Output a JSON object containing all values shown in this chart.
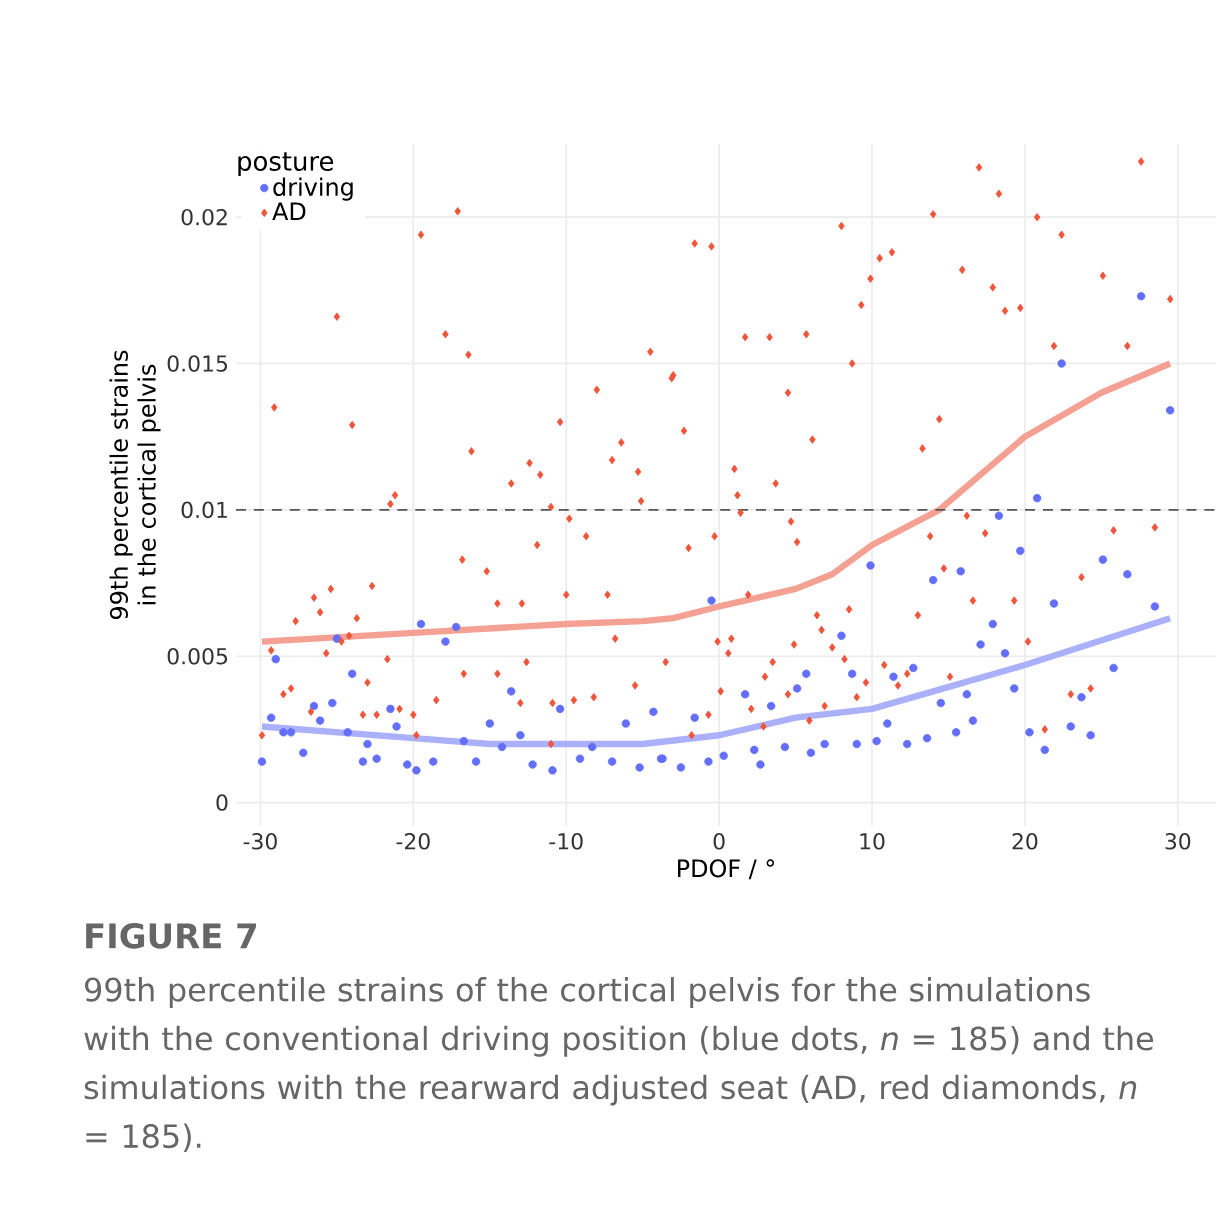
{
  "chart_data": {
    "type": "scatter",
    "xlabel": "PDOF / °",
    "ylabel": "99th percentile strains in the cortical pelvis",
    "legend_title": "posture",
    "legend": "top left",
    "grid": true,
    "xlim": [
      -31.6,
      32.5
    ],
    "ylim": [
      -0.0008,
      0.0225
    ],
    "xticks": [
      -30,
      -20,
      -10,
      0,
      10,
      20,
      30
    ],
    "yticks": [
      0,
      0.005,
      0.01,
      0.015,
      0.02
    ],
    "ref_lines": [
      {
        "axis": "y",
        "value": 0.01,
        "color": "#555555",
        "line_style": "dashed"
      }
    ],
    "annotations": [
      "FIGURE 7",
      "99th percentile strains of the cortical pelvis for the simulations with the conventional driving position (blue dots, *n* = 185) and the simulations with the rearward adjusted seat (AD, red diamonds, *n* = 185)."
    ],
    "series": [
      {
        "name": "driving",
        "color": "#636efa",
        "marker": "circle",
        "x": [
          -29.9,
          -29.3,
          -29,
          -28.5,
          -28,
          -27.2,
          -26.5,
          -26.1,
          -25.3,
          -25,
          -24.3,
          -24,
          -23.3,
          -23,
          -22.4,
          -21.5,
          -21.1,
          -20.4,
          -19.8,
          -19.5,
          -18.7,
          -17.9,
          -17.2,
          -16.7,
          -15.9,
          -15,
          -14.2,
          -13.6,
          -13,
          -12.2,
          -10.9,
          -10.4,
          -9.1,
          -8.3,
          -7,
          -6.1,
          -5.2,
          -4.3,
          -3.7,
          -3.8,
          -2.5,
          -1.6,
          -0.7,
          -0.5,
          0.3,
          1.7,
          2.3,
          2.7,
          3.4,
          4.3,
          5.1,
          5.7,
          6,
          6.9,
          8,
          8.7,
          9,
          9.9,
          10.3,
          11,
          11.4,
          12.3,
          12.7,
          13.6,
          14,
          14.5,
          15.5,
          15.8,
          16.2,
          16.6,
          17.1,
          17.9,
          18.3,
          18.7,
          19.3,
          19.7,
          20.3,
          20.8,
          21.3,
          21.9,
          22.4,
          23,
          23.7,
          24.3,
          25.1,
          25.8,
          26.7,
          27.6,
          28.5,
          29.5
        ],
        "values": [
          0.0014,
          0.0029,
          0.0049,
          0.0024,
          0.0024,
          0.0017,
          0.0033,
          0.0028,
          0.0034,
          0.0056,
          0.0024,
          0.0044,
          0.0014,
          0.002,
          0.0015,
          0.0032,
          0.0026,
          0.0013,
          0.0011,
          0.0061,
          0.0014,
          0.0055,
          0.006,
          0.0021,
          0.0014,
          0.0027,
          0.0019,
          0.0038,
          0.0023,
          0.0013,
          0.0011,
          0.0032,
          0.0015,
          0.0019,
          0.0014,
          0.0027,
          0.0012,
          0.0031,
          0.0015,
          0.0015,
          0.0012,
          0.0029,
          0.0014,
          0.0069,
          0.0016,
          0.0037,
          0.0018,
          0.0013,
          0.0033,
          0.0019,
          0.0039,
          0.0044,
          0.0017,
          0.002,
          0.0057,
          0.0044,
          0.002,
          0.0081,
          0.0021,
          0.0027,
          0.0043,
          0.002,
          0.0046,
          0.0022,
          0.0076,
          0.0034,
          0.0024,
          0.0079,
          0.0037,
          0.0028,
          0.0054,
          0.0061,
          0.0098,
          0.0051,
          0.0039,
          0.0086,
          0.0024,
          0.0104,
          0.0018,
          0.0068,
          0.015,
          0.0026,
          0.0036,
          0.0023,
          0.0083,
          0.0046,
          0.0078,
          0.0173,
          0.0067,
          0.0134
        ]
      },
      {
        "name": "AD",
        "color": "#ef553b",
        "marker": "diamond",
        "x": [
          -29.1,
          -29.3,
          -29.9,
          -28.5,
          -28,
          -27.7,
          -26.5,
          -26.1,
          -25.4,
          -25,
          -25.7,
          -24.7,
          -24.2,
          -24,
          -23.7,
          -22.7,
          -23.3,
          -23,
          -21.7,
          -21.5,
          -21.2,
          -22.4,
          -20.9,
          -20,
          -19.8,
          -19.5,
          -17.9,
          -17.1,
          -16.4,
          -16.2,
          -16.8,
          -16.7,
          -15.2,
          -14.5,
          -13.6,
          -12.9,
          -12.4,
          -11.7,
          -11.9,
          -12.6,
          -11,
          -10.4,
          -9.8,
          -10,
          -8.7,
          -8,
          -7,
          -6.4,
          -7.3,
          -6.8,
          -5.3,
          -5.1,
          -4.5,
          -3,
          -10.9,
          -18.5,
          -14.5,
          -13,
          -11,
          -9.5,
          -8.2,
          -5.5,
          -3.5,
          -26.7,
          -3.1,
          -2.3,
          -2,
          -1.6,
          -0.5,
          -0.3,
          -0.1,
          0.6,
          0.8,
          1,
          1.2,
          1.4,
          1.7,
          1.9,
          3.3,
          3.7,
          3.5,
          4.5,
          4.7,
          5.1,
          4.9,
          5.7,
          6.1,
          6.4,
          6.7,
          7.4,
          8,
          8.5,
          8.7,
          9.3,
          9.9,
          10.5,
          11.3,
          13.3,
          14,
          14.4,
          13.8,
          13,
          14.7,
          15.9,
          16.2,
          16.6,
          17,
          17.4,
          17.9,
          18.3,
          18.7,
          19.3,
          19.7,
          20.2,
          20.8,
          21.3,
          21.9,
          22.4,
          23,
          23.7,
          24.3,
          25.1,
          25.8,
          26.7,
          27.6,
          28.5,
          29.5,
          3,
          2.1,
          0.1,
          -0.7,
          -1.8,
          10.8,
          11.7,
          12.3,
          15.1,
          9.6,
          9,
          6.9,
          4.5,
          2.9,
          5.9,
          8.2
        ],
        "values": [
          0.0135,
          0.0052,
          0.0023,
          0.0037,
          0.0039,
          0.0062,
          0.007,
          0.0065,
          0.0073,
          0.0166,
          0.0051,
          0.0055,
          0.0057,
          0.0129,
          0.0063,
          0.0074,
          0.003,
          0.0041,
          0.0049,
          0.0102,
          0.0105,
          0.003,
          0.0032,
          0.003,
          0.0023,
          0.0194,
          0.016,
          0.0202,
          0.0153,
          0.012,
          0.0083,
          0.0044,
          0.0079,
          0.0068,
          0.0109,
          0.0068,
          0.0116,
          0.0112,
          0.0088,
          0.0048,
          0.0101,
          0.013,
          0.0097,
          0.0071,
          0.0091,
          0.0141,
          0.0117,
          0.0123,
          0.0071,
          0.0056,
          0.0113,
          0.0103,
          0.0154,
          0.0146,
          0.0034,
          0.0035,
          0.0044,
          0.0034,
          0.002,
          0.0035,
          0.0036,
          0.004,
          0.0048,
          0.0031,
          0.0145,
          0.0127,
          0.0087,
          0.0191,
          0.019,
          0.0091,
          0.0055,
          0.0051,
          0.0056,
          0.0114,
          0.0105,
          0.0099,
          0.0159,
          0.0071,
          0.0159,
          0.0109,
          0.0048,
          0.014,
          0.0096,
          0.0089,
          0.0054,
          0.016,
          0.0124,
          0.0064,
          0.0059,
          0.0053,
          0.0197,
          0.0066,
          0.015,
          0.017,
          0.0179,
          0.0186,
          0.0188,
          0.0121,
          0.0201,
          0.0131,
          0.0091,
          0.0064,
          0.008,
          0.0182,
          0.0098,
          0.0069,
          0.0217,
          0.0092,
          0.0176,
          0.0208,
          0.0168,
          0.0069,
          0.0169,
          0.0055,
          0.02,
          0.0025,
          0.0156,
          0.0194,
          0.0037,
          0.0077,
          0.0039,
          0.018,
          0.0093,
          0.0156,
          0.0219,
          0.0094,
          0.0172,
          0.0043,
          0.0032,
          0.0038,
          0.003,
          0.0023,
          0.0047,
          0.004,
          0.0044,
          0.0043,
          0.0041,
          0.0036,
          0.0033,
          0.0037,
          0.0026,
          0.0028,
          0.0049
        ]
      },
      {
        "type": "line",
        "color": "#f4a194",
        "x": [
          -29.9,
          -20,
          -10,
          -5,
          -3,
          0,
          5,
          7.4,
          10,
          14.4,
          20,
          25,
          29.5
        ],
        "values": [
          0.0055,
          0.0058,
          0.0061,
          0.0062,
          0.0063,
          0.0067,
          0.0073,
          0.0078,
          0.0088,
          0.01,
          0.0125,
          0.014,
          0.015
        ]
      },
      {
        "type": "line",
        "color": "#aab0f9",
        "x": [
          -29.9,
          -20,
          -15,
          -10,
          -5,
          0,
          5,
          10,
          14,
          20,
          29.5
        ],
        "values": [
          0.0026,
          0.0022,
          0.002,
          0.002,
          0.002,
          0.0023,
          0.0029,
          0.0032,
          0.0038,
          0.0047,
          0.0063
        ]
      }
    ]
  }
}
